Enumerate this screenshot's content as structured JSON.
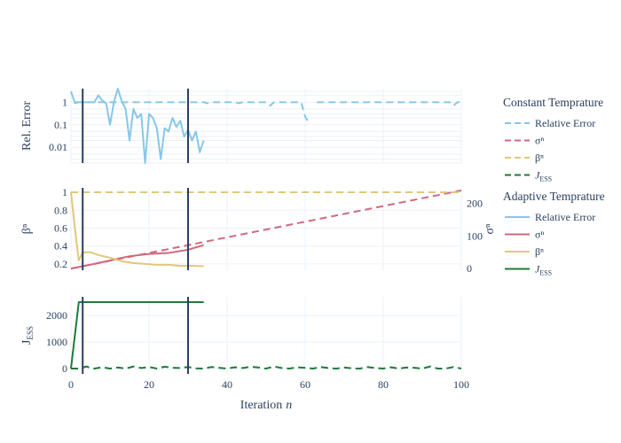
{
  "colors": {
    "relative_error": "#87c7e8",
    "sigma": "#d0697d",
    "beta": "#e0c87a",
    "jess": "#1f7a3a",
    "vline": "#2a3f5f",
    "text": "#2a3f5f",
    "grid": "#ebf0f8"
  },
  "legend": {
    "group1_title": "Constant Temprature",
    "group2_title": "Adaptive Temprature",
    "placement": "right",
    "items1": [
      {
        "label": "Relative Error",
        "series": "relative_error",
        "dash": "dashed"
      },
      {
        "label": "σⁿ",
        "series": "sigma",
        "dash": "dashed"
      },
      {
        "label": "βⁿ",
        "series": "beta",
        "dash": "dashed"
      },
      {
        "label": "J",
        "sub": "ESS",
        "series": "jess",
        "dash": "dashed"
      }
    ],
    "items2": [
      {
        "label": "Relative Error",
        "series": "relative_error",
        "dash": "solid"
      },
      {
        "label": "σⁿ",
        "series": "sigma",
        "dash": "solid"
      },
      {
        "label": "βⁿ",
        "series": "beta",
        "dash": "solid"
      },
      {
        "label": "J",
        "sub": "ESS",
        "series": "jess",
        "dash": "solid"
      }
    ]
  },
  "chart_data": {
    "type": "line",
    "x_axis": {
      "label": "Iteration",
      "label_var": "n",
      "range": [
        0,
        100
      ],
      "ticks": [
        0,
        20,
        40,
        60,
        80,
        100
      ]
    },
    "vertical_markers": [
      3,
      30
    ],
    "panels": [
      {
        "id": "rel-error",
        "ylabel": "Rel. Error",
        "yscale": "log",
        "ylim": [
          0.002,
          4
        ],
        "yticks": [
          0.01,
          0.1,
          1
        ],
        "ytick_labels": [
          "0.01",
          "0.1",
          "1"
        ],
        "series": [
          {
            "name": "Relative Error",
            "group": "Constant Temprature",
            "style": "dashed",
            "color_key": "relative_error",
            "x": [
              1,
              2,
              3,
              4,
              5,
              6,
              7,
              8,
              9,
              10,
              11,
              12,
              13,
              14,
              15,
              16,
              17,
              18,
              19,
              20,
              21,
              22,
              23,
              24,
              25,
              26,
              27,
              28,
              29,
              30,
              31,
              32,
              33,
              34,
              35,
              36,
              37,
              38,
              39,
              40,
              41,
              42,
              43,
              44,
              45,
              46,
              47,
              48,
              49,
              50,
              51,
              52,
              53,
              54,
              55,
              56,
              57,
              58,
              59,
              60,
              61,
              62,
              63,
              64,
              65,
              66,
              67,
              68,
              69,
              70,
              71,
              72,
              73,
              74,
              75,
              76,
              77,
              78,
              79,
              80,
              81,
              82,
              83,
              84,
              85,
              86,
              87,
              88,
              89,
              90,
              91,
              92,
              93,
              94,
              95,
              96,
              97,
              98,
              99,
              100
            ],
            "y": [
              1,
              1,
              1,
              1,
              1,
              1,
              1,
              1,
              1,
              1,
              1,
              1,
              1,
              1,
              1,
              1,
              1,
              1,
              1,
              1,
              1,
              1,
              1,
              1,
              1,
              1,
              1,
              1,
              1,
              1,
              1,
              1,
              1,
              1,
              0.9,
              1,
              1,
              1,
              1,
              1,
              1,
              1,
              0.9,
              1,
              1,
              1,
              1,
              1,
              1,
              1,
              0.7,
              1,
              1,
              1,
              1,
              1,
              1,
              1,
              1,
              0.22,
              0.12,
              null,
              1,
              1,
              1,
              1,
              1,
              1,
              1,
              1,
              1,
              1,
              1,
              1,
              1,
              1,
              1,
              1,
              1,
              1,
              1,
              1,
              1,
              1,
              1,
              1,
              1,
              1,
              1,
              1,
              1,
              1,
              1,
              1,
              1,
              1,
              1,
              0.7,
              1,
              1
            ]
          },
          {
            "name": "Relative Error",
            "group": "Adaptive Temprature",
            "style": "solid",
            "color_key": "relative_error",
            "x": [
              0,
              1,
              2,
              3,
              4,
              5,
              6,
              7,
              8,
              9,
              10,
              11,
              12,
              13,
              14,
              15,
              16,
              17,
              18,
              19,
              20,
              21,
              22,
              23,
              24,
              25,
              26,
              27,
              28,
              29,
              30,
              31,
              32,
              33,
              34
            ],
            "y": [
              3,
              0.9,
              1,
              1,
              1,
              1,
              1,
              2,
              1.2,
              0.9,
              0.1,
              1,
              4,
              1.1,
              0.5,
              0.02,
              0.5,
              0.2,
              0.3,
              0.002,
              0.3,
              0.2,
              0.07,
              0.003,
              0.07,
              0.05,
              0.2,
              0.08,
              0.15,
              0.03,
              0.06,
              0.02,
              0.05,
              0.006,
              0.02
            ]
          }
        ]
      },
      {
        "id": "beta-sigma",
        "ylabel": "βⁿ",
        "ylim": [
          0.13,
          1.05
        ],
        "yticks": [
          0.2,
          0.4,
          0.6,
          0.8,
          1
        ],
        "ytick_labels": [
          "0.2",
          "0.4",
          "0.6",
          "0.8",
          "1"
        ],
        "y2label": "σⁿ",
        "y2lim": [
          -5,
          248
        ],
        "y2ticks": [
          0,
          100,
          200
        ],
        "y2tick_labels": [
          "0",
          "100",
          "200"
        ],
        "series": [
          {
            "name": "σⁿ",
            "group": "Constant Temprature",
            "style": "dashed",
            "axis": "y2",
            "color_key": "sigma",
            "x": [
              0,
              100
            ],
            "y": [
              0,
              240
            ]
          },
          {
            "name": "βⁿ",
            "group": "Constant Temprature",
            "style": "dashed",
            "axis": "y",
            "color_key": "beta",
            "x": [
              0,
              100
            ],
            "y": [
              1,
              1
            ]
          },
          {
            "name": "σⁿ",
            "group": "Adaptive Temprature",
            "style": "solid",
            "axis": "y2",
            "color_key": "sigma",
            "x": [
              0,
              5,
              10,
              15,
              20,
              25,
              30,
              34
            ],
            "y": [
              0,
              12,
              25,
              38,
              45,
              48,
              58,
              72
            ]
          },
          {
            "name": "βⁿ",
            "group": "Adaptive Temprature",
            "style": "solid",
            "axis": "y",
            "color_key": "beta",
            "x": [
              0,
              1,
              2,
              3,
              5,
              7,
              10,
              13,
              16,
              19,
              22,
              25,
              28,
              31,
              34
            ],
            "y": [
              1,
              0.6,
              0.24,
              0.33,
              0.33,
              0.3,
              0.27,
              0.23,
              0.21,
              0.2,
              0.19,
              0.19,
              0.18,
              0.18,
              0.175
            ]
          }
        ]
      },
      {
        "id": "jess",
        "ylabel": "J",
        "ylabel_sub": "ESS",
        "ylim": [
          -200,
          2700
        ],
        "yticks": [
          0,
          1000,
          2000
        ],
        "ytick_labels": [
          "0",
          "1000",
          "2000"
        ],
        "series": [
          {
            "name": "J_ESS",
            "group": "Constant Temprature",
            "style": "dashed",
            "color_key": "jess",
            "x": [
              0,
              2,
              4,
              5,
              6,
              8,
              10,
              12,
              14,
              16,
              18,
              20,
              22,
              24,
              26,
              28,
              30,
              32,
              34,
              36,
              38,
              40,
              42,
              44,
              46,
              48,
              50,
              52,
              54,
              56,
              58,
              60,
              62,
              64,
              66,
              68,
              70,
              72,
              74,
              76,
              78,
              80,
              82,
              84,
              86,
              88,
              90,
              92,
              94,
              96,
              98,
              100
            ],
            "y": [
              0,
              0,
              80,
              20,
              0,
              50,
              0,
              40,
              0,
              80,
              20,
              60,
              0,
              70,
              30,
              20,
              60,
              10,
              0,
              60,
              30,
              0,
              50,
              20,
              70,
              40,
              0,
              80,
              20,
              0,
              50,
              30,
              0,
              60,
              20,
              0,
              40,
              10,
              0,
              60,
              20,
              0,
              50,
              0,
              40,
              30,
              0,
              80,
              0,
              0,
              60,
              0
            ]
          },
          {
            "name": "J_ESS",
            "group": "Adaptive Temprature",
            "style": "solid",
            "color_key": "jess",
            "x": [
              0,
              2,
              34
            ],
            "y": [
              0,
              2500,
              2500
            ]
          }
        ]
      }
    ]
  }
}
